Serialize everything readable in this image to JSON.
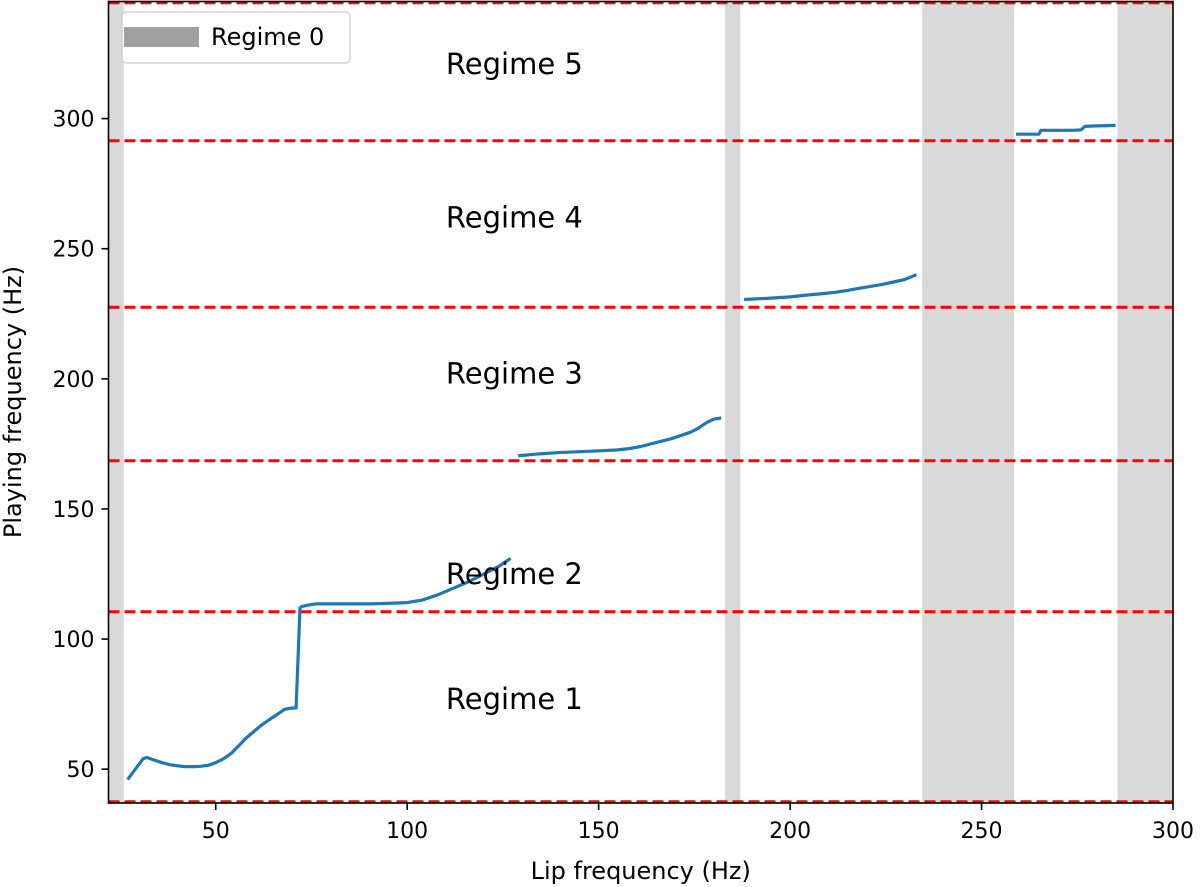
{
  "chart_data": {
    "type": "line",
    "xlabel": "Lip frequency (Hz)",
    "ylabel": "Playing frequency (Hz)",
    "xlim": [
      22,
      300
    ],
    "ylim": [
      37,
      345
    ],
    "xticks": [
      50,
      100,
      150,
      200,
      250,
      300
    ],
    "yticks": [
      50,
      100,
      150,
      200,
      250,
      300
    ],
    "grid": false,
    "legend": {
      "position": "top-left",
      "entries": [
        {
          "label": "Regime 0",
          "color": "#a0a0a0"
        }
      ]
    },
    "regime0_bands": [
      [
        22,
        26
      ],
      [
        183,
        187
      ],
      [
        234.5,
        258.5
      ],
      [
        285.5,
        300
      ]
    ],
    "regime_boundaries": [
      37.5,
      110.5,
      168.5,
      227.5,
      291.5,
      344.5
    ],
    "regime_labels": [
      {
        "text": "Regime 1",
        "x": 128,
        "y": 77
      },
      {
        "text": "Regime 2",
        "x": 128,
        "y": 125
      },
      {
        "text": "Regime 3",
        "x": 128,
        "y": 202
      },
      {
        "text": "Regime 4",
        "x": 128,
        "y": 262
      },
      {
        "text": "Regime 5",
        "x": 128,
        "y": 321
      }
    ],
    "series": [
      {
        "x": [
          27,
          29,
          31,
          32,
          34,
          36,
          38,
          40,
          42,
          44,
          46,
          48,
          50,
          52,
          54,
          56,
          58,
          60,
          62,
          64,
          66,
          68,
          70,
          71,
          72,
          72.5,
          74,
          76,
          80,
          85,
          90,
          95,
          100,
          104,
          108,
          112,
          116,
          120,
          124,
          127
        ],
        "y": [
          46,
          50,
          54,
          54.5,
          53.5,
          52.5,
          51.7,
          51.3,
          51,
          51,
          51.1,
          51.5,
          52.5,
          54,
          56,
          59,
          62,
          64.5,
          67,
          69,
          71,
          73,
          73.5,
          73.5,
          112,
          112.5,
          113,
          113.5,
          113.5,
          113.5,
          113.5,
          113.7,
          114,
          115,
          117,
          119.5,
          122,
          125,
          128,
          131
        ]
      },
      {
        "x": [
          129,
          131,
          133,
          136,
          139,
          142,
          145,
          148,
          151,
          155,
          158,
          161,
          165,
          169,
          172,
          174,
          176,
          178,
          180,
          182
        ],
        "y": [
          170.5,
          170.7,
          171,
          171.3,
          171.6,
          171.8,
          172,
          172.2,
          172.4,
          172.7,
          173.2,
          174,
          175.5,
          177,
          178.5,
          179.5,
          181,
          183,
          184.5,
          185
        ]
      },
      {
        "x": [
          188,
          191,
          194,
          197,
          200,
          203,
          206,
          209,
          212,
          215,
          218,
          221,
          224,
          227,
          230,
          233
        ],
        "y": [
          230.5,
          230.7,
          230.9,
          231.2,
          231.5,
          232,
          232.4,
          232.8,
          233.3,
          234,
          234.8,
          235.5,
          236.3,
          237.2,
          238.2,
          240
        ]
      },
      {
        "x": [
          259,
          262,
          265,
          265.5,
          268,
          271,
          274,
          276,
          277,
          280,
          283,
          285
        ],
        "y": [
          294,
          294,
          294,
          295.5,
          295.5,
          295.5,
          295.5,
          295.7,
          297,
          297.2,
          297.3,
          297.4
        ]
      }
    ]
  }
}
